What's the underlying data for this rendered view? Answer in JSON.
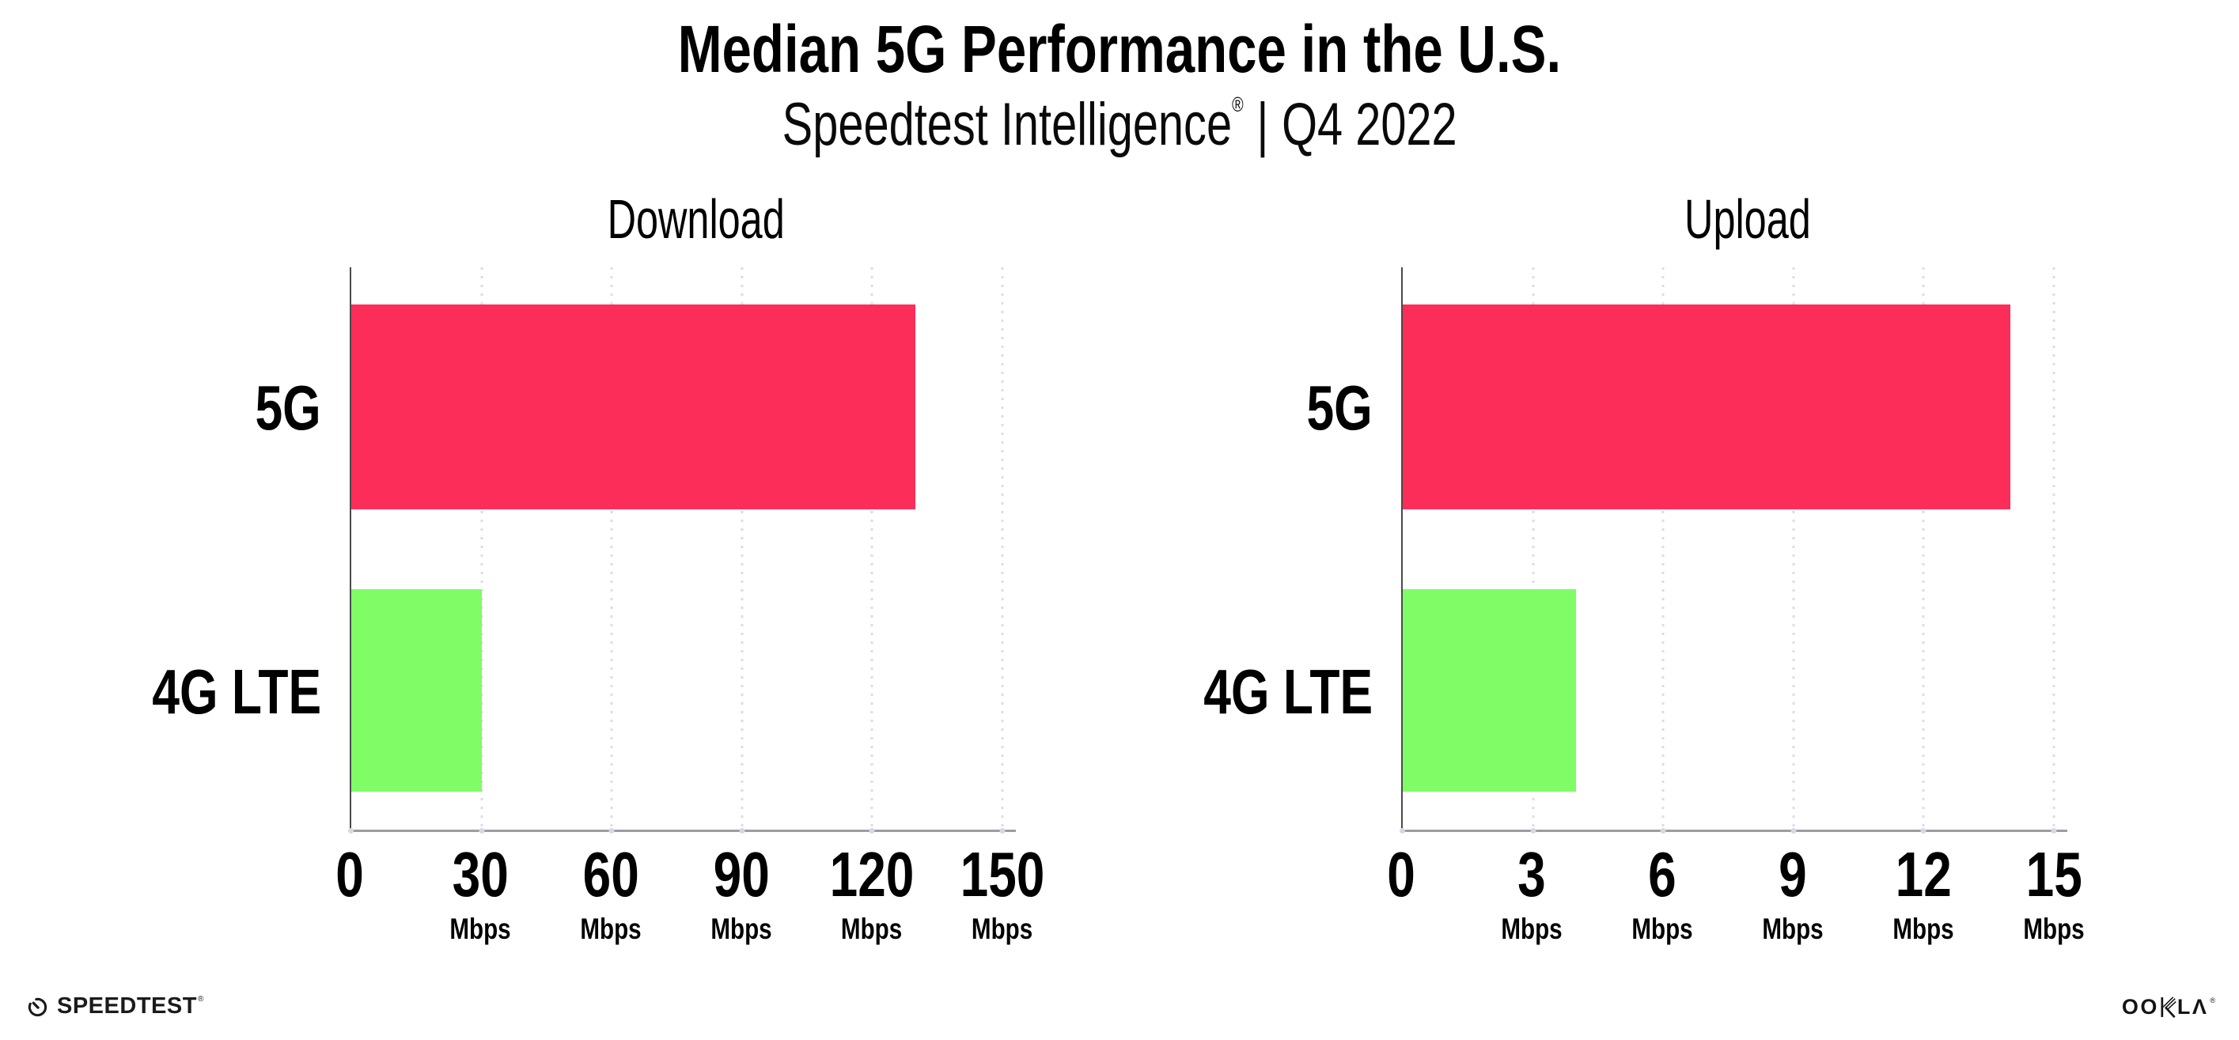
{
  "page": {
    "title": "Median 5G Performance in the U.S.",
    "subtitle": {
      "brand": "Speedtest Intelligence",
      "registered_mark": "®",
      "separator": "|",
      "period": "Q4 2022"
    }
  },
  "chart_data": [
    {
      "type": "bar",
      "orientation": "horizontal",
      "title": "Download",
      "categories": [
        "5G",
        "4G LTE"
      ],
      "values": [
        130,
        30
      ],
      "unit": "Mbps",
      "xlim": [
        0,
        150
      ],
      "xticks": [
        0,
        30,
        60,
        90,
        120,
        150
      ],
      "bar_colors": [
        "#fd2d5a",
        "#80fc66"
      ],
      "grid": "vertical-dotted",
      "legend": "none"
    },
    {
      "type": "bar",
      "orientation": "horizontal",
      "title": "Upload",
      "categories": [
        "5G",
        "4G LTE"
      ],
      "values": [
        14,
        4
      ],
      "unit": "Mbps",
      "xlim": [
        0,
        15
      ],
      "xticks": [
        0,
        3,
        6,
        9,
        12,
        15
      ],
      "bar_colors": [
        "#fd2d5a",
        "#80fc66"
      ],
      "grid": "vertical-dotted",
      "legend": "none"
    }
  ],
  "footer": {
    "speedtest_logo_text": "SPEEDTEST",
    "speedtest_registered_mark": "®",
    "ookla_logo_text": "OOKLA",
    "ookla_logo_prefix": "OO",
    "ookla_logo_suffix": "LΛ",
    "ookla_registered_mark": "®"
  },
  "colors": {
    "bar_5g": "#fd2d5a",
    "bar_4g_lte": "#80fc66",
    "gridline": "#dcdce8",
    "y_axis_line": "#4a4a4a",
    "x_axis_line": "#9d9da1",
    "text": "#000000"
  }
}
